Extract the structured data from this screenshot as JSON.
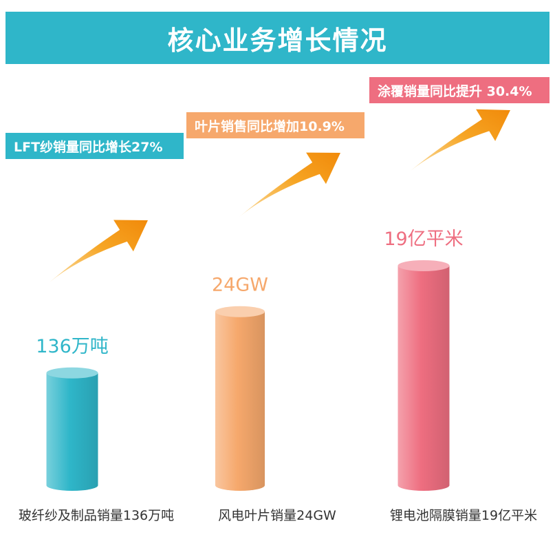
{
  "title": "核心业务增长情况",
  "colors": {
    "title_bg": "#2fb6c9",
    "teal": "#2fb6c9",
    "orange": "#f6a86c",
    "pink": "#ee6e80",
    "arrow": "#f39a17"
  },
  "icons": [
    "growth-arrow-icon",
    "growth-arrow-icon",
    "growth-arrow-icon"
  ],
  "chart_data": {
    "type": "bar",
    "title": "核心业务增长情况",
    "categories": [
      "玻纤纱及制品销量136万吨",
      "风电叶片销量24GW",
      "锂电池隔膜销量19亿平米"
    ],
    "values": [
      136,
      24,
      19
    ],
    "units": [
      "万吨",
      "GW",
      "亿平米"
    ],
    "value_labels": [
      "136万吨",
      "24GW",
      "19亿平米"
    ],
    "growth_labels": [
      "LFT纱销量同比增长27%",
      "叶片销售同比增加10.9%",
      "涂覆销量同比提升 30.4%"
    ],
    "series_colors": [
      "#2fb6c9",
      "#f6a86c",
      "#ee6e80"
    ],
    "visual_levels": [
      0.22,
      0.34,
      0.43
    ],
    "grid": false,
    "legend": "none"
  }
}
